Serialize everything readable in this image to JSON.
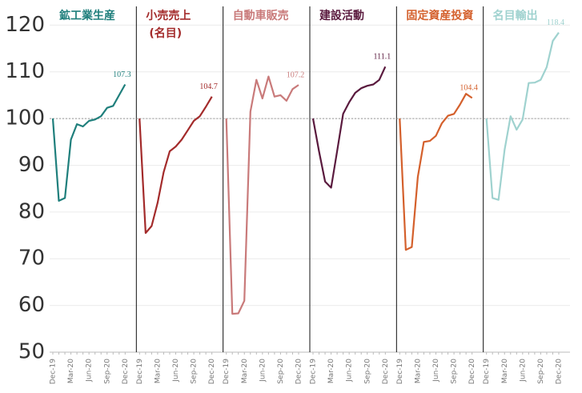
{
  "chart_data": [
    {
      "type": "line",
      "title": "鉱工業生産",
      "color": "#1f7f7c",
      "categories": [
        "Dec-19",
        null,
        null,
        "Mar-20",
        null,
        null,
        "Jun-20",
        null,
        null,
        "Sep-20",
        null,
        null,
        "Dec-20"
      ],
      "values": [
        100,
        82.4,
        83,
        95.5,
        98.8,
        98.3,
        99.5,
        99.8,
        100.5,
        102.3,
        102.7,
        105,
        107.3
      ],
      "ylim": [
        50,
        124
      ],
      "yticks": [
        50,
        60,
        70,
        80,
        90,
        100,
        110,
        120
      ],
      "reference_line": 100
    },
    {
      "type": "line",
      "title": "小売売上",
      "subtitle": "(名目)",
      "color": "#a32b2b",
      "categories": [
        "Dec-19",
        null,
        null,
        "Mar-20",
        null,
        null,
        "Jun-20",
        null,
        null,
        "Sep-20",
        null,
        null,
        "Dec-20"
      ],
      "values": [
        100,
        75.5,
        77,
        82,
        88.5,
        93,
        94,
        95.5,
        97.5,
        99.5,
        100.5,
        102.5,
        104.7
      ],
      "ylim": [
        50,
        124
      ],
      "reference_line": 100
    },
    {
      "type": "line",
      "title": "自動車販売",
      "color": "#c97a7a",
      "categories": [
        "Dec-19",
        null,
        null,
        "Mar-20",
        null,
        null,
        "Jun-20",
        null,
        null,
        "Sep-20",
        null,
        null,
        "Dec-20"
      ],
      "values": [
        100,
        58.2,
        58.3,
        61,
        101.5,
        108.3,
        104.3,
        109,
        104.7,
        105,
        103.8,
        106.3,
        107.2
      ],
      "ylim": [
        50,
        124
      ],
      "reference_line": 100
    },
    {
      "type": "line",
      "title": "建設活動",
      "color": "#5a1a3e",
      "categories": [
        "Dec-19",
        null,
        null,
        "Mar-20",
        null,
        null,
        "Jun-20",
        null,
        null,
        "Sep-20",
        null,
        null,
        "Dec-20"
      ],
      "values": [
        100,
        93,
        86.5,
        85.2,
        93,
        101,
        103.5,
        105.5,
        106.5,
        107,
        107.3,
        108.3,
        111.1
      ],
      "ylim": [
        50,
        124
      ],
      "reference_line": 100
    },
    {
      "type": "line",
      "title": "固定資産投資",
      "color": "#d4602c",
      "categories": [
        "Dec-19",
        null,
        null,
        "Mar-20",
        null,
        null,
        "Jun-20",
        null,
        null,
        "Sep-20",
        null,
        null,
        "Dec-20"
      ],
      "values": [
        100,
        71.9,
        72.5,
        87.5,
        95,
        95.2,
        96.3,
        99,
        100.6,
        101,
        103,
        105.3,
        104.4
      ],
      "ylim": [
        50,
        124
      ],
      "reference_line": 100
    },
    {
      "type": "line",
      "title": "名目輸出",
      "color": "#9fd2cf",
      "categories": [
        "Dec-19",
        null,
        null,
        "Mar-20",
        null,
        null,
        "Jun-20",
        null,
        null,
        "Sep-20",
        null,
        null,
        "Dec-20"
      ],
      "values": [
        100,
        83,
        82.6,
        93.3,
        100.5,
        97.6,
        99.8,
        107.6,
        107.7,
        108.3,
        111,
        116.6,
        118.4
      ],
      "ylim": [
        50,
        124
      ],
      "reference_line": 100
    }
  ]
}
